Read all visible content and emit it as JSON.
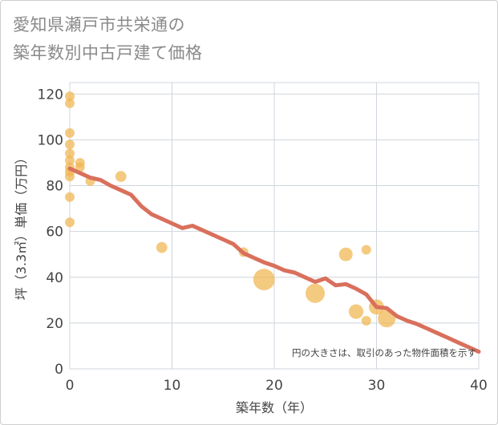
{
  "title_lines": [
    "愛知県瀬戸市共栄通の",
    "築年数別中古戸建て価格"
  ],
  "chart_data": {
    "type": "scatter",
    "title": "愛知県瀬戸市共栄通の築年数別中古戸建て価格",
    "xlabel": "築年数（年）",
    "ylabel": "坪（3.3㎡）単価（万円）",
    "xlim": [
      0,
      40
    ],
    "ylim": [
      0,
      125
    ],
    "xticks": [
      0,
      10,
      20,
      30,
      40
    ],
    "yticks": [
      0,
      20,
      40,
      60,
      80,
      100,
      120
    ],
    "grid": true,
    "note": "円の大きさは、取引のあった物件面積を示す",
    "colors": {
      "bubble": "#f0b54f",
      "trend": "#d9705c"
    },
    "bubbles": [
      {
        "x": 0,
        "y": 119,
        "size": 1
      },
      {
        "x": 0,
        "y": 116,
        "size": 1
      },
      {
        "x": 0,
        "y": 103,
        "size": 1
      },
      {
        "x": 0,
        "y": 98,
        "size": 1
      },
      {
        "x": 0,
        "y": 94,
        "size": 1
      },
      {
        "x": 0,
        "y": 91,
        "size": 1
      },
      {
        "x": 0,
        "y": 88,
        "size": 1
      },
      {
        "x": 0,
        "y": 86,
        "size": 1
      },
      {
        "x": 0,
        "y": 84,
        "size": 1
      },
      {
        "x": 0,
        "y": 75,
        "size": 1
      },
      {
        "x": 0,
        "y": 64,
        "size": 1
      },
      {
        "x": 1,
        "y": 90,
        "size": 1
      },
      {
        "x": 1,
        "y": 88,
        "size": 1
      },
      {
        "x": 2,
        "y": 82,
        "size": 1
      },
      {
        "x": 5,
        "y": 84,
        "size": 1.3
      },
      {
        "x": 9,
        "y": 53,
        "size": 1.3
      },
      {
        "x": 17,
        "y": 51,
        "size": 1
      },
      {
        "x": 19,
        "y": 39,
        "size": 5
      },
      {
        "x": 24,
        "y": 33,
        "size": 4
      },
      {
        "x": 27,
        "y": 50,
        "size": 2
      },
      {
        "x": 28,
        "y": 25,
        "size": 2.3
      },
      {
        "x": 29,
        "y": 52,
        "size": 1
      },
      {
        "x": 29,
        "y": 21,
        "size": 1
      },
      {
        "x": 30,
        "y": 27,
        "size": 2.5
      },
      {
        "x": 31,
        "y": 22,
        "size": 3.4
      }
    ],
    "trend": {
      "x": [
        0,
        1,
        2,
        3,
        4,
        5,
        6,
        7,
        8,
        9,
        10,
        11,
        12,
        13,
        14,
        15,
        16,
        17,
        18,
        19,
        20,
        21,
        22,
        23,
        24,
        25,
        26,
        27,
        28,
        29,
        30,
        31,
        32,
        33,
        34,
        35,
        36,
        37,
        38,
        39,
        40
      ],
      "y": [
        87.5,
        85.5,
        83.5,
        82.5,
        80,
        78,
        76,
        71,
        67.5,
        65.5,
        63.5,
        61.5,
        62.5,
        60.5,
        58.5,
        56.5,
        54.5,
        50.5,
        48.5,
        46.5,
        45,
        43,
        42,
        40,
        38,
        39.5,
        36.5,
        37,
        35,
        32.5,
        27,
        26.5,
        23,
        21,
        19.5,
        17.5,
        15.5,
        13.5,
        11.5,
        9.5,
        7.5
      ]
    }
  }
}
